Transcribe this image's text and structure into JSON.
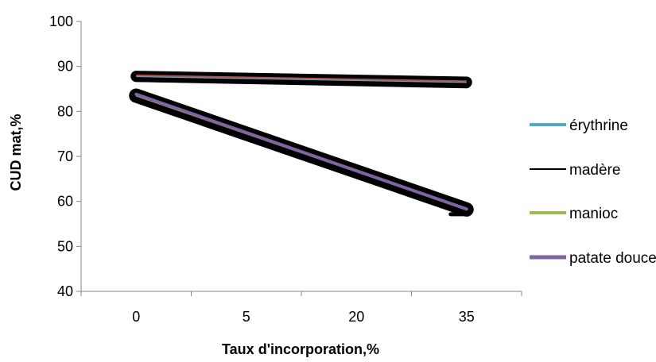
{
  "chart_data": {
    "type": "line",
    "title": "",
    "xlabel": "Taux d'incorporation,%",
    "ylabel": "CUD mat,%",
    "categories": [
      "0",
      "5",
      "20",
      "35"
    ],
    "ylim": [
      40,
      100
    ],
    "yticks": [
      40,
      50,
      60,
      70,
      80,
      90,
      100
    ],
    "grid": false,
    "legend": "right",
    "series": [
      {
        "name": "érythrine",
        "x": [
          "0",
          "35"
        ],
        "values": [
          87.8,
          86.5
        ],
        "color": "#4bacc6"
      },
      {
        "name": "madère",
        "x": [
          "0",
          "35"
        ],
        "values": [
          87.6,
          86.2
        ],
        "color": "#000000"
      },
      {
        "name": "manioc",
        "x": [
          "0",
          "35"
        ],
        "values": [
          83.5,
          58.2
        ],
        "color": "#9bbb59"
      },
      {
        "name": "patate douce",
        "x": [
          "0",
          "35"
        ],
        "values": [
          83.8,
          58.3
        ],
        "color": "#8064a2"
      }
    ],
    "extra_lines": [
      {
        "x": [
          "0",
          "35"
        ],
        "values": [
          88.0,
          86.7
        ],
        "color": "#c0504d"
      }
    ]
  }
}
